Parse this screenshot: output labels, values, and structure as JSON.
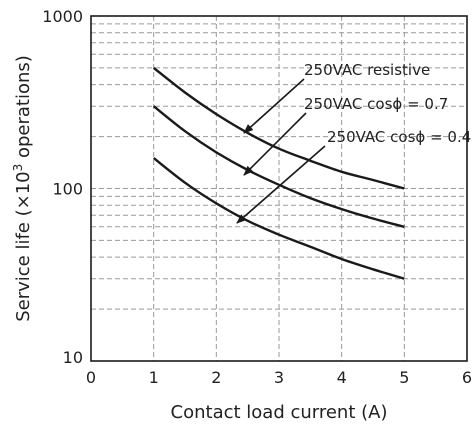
{
  "chart_data": {
    "type": "line",
    "title": "",
    "xlabel": "Contact load current (A)",
    "ylabel": "Service life (×10³ operations)",
    "ylabel_parts": {
      "prefix": "Service life (×10",
      "sup": "3",
      "suffix": " operations)"
    },
    "xlim": [
      0,
      6
    ],
    "ylim": [
      10,
      1000
    ],
    "yscale": "log",
    "grid": true,
    "grid_style": "dashed",
    "x_ticks": [
      "0",
      "1",
      "2",
      "3",
      "4",
      "5",
      "6"
    ],
    "y_ticks": [
      "10",
      "100",
      "1000"
    ],
    "series": [
      {
        "label_prefix": "250VAC ",
        "label_main": "resistive",
        "x": [
          1,
          1.5,
          2,
          2.5,
          3,
          3.5,
          4,
          4.5,
          5
        ],
        "y": [
          500,
          360,
          270,
          210,
          170,
          145,
          125,
          112,
          100
        ]
      },
      {
        "label_prefix": "250VAC ",
        "label_main": "cosϕ = 0.7",
        "x": [
          1,
          1.5,
          2,
          2.5,
          3,
          3.5,
          4,
          4.5,
          5
        ],
        "y": [
          300,
          215,
          162,
          128,
          105,
          88,
          76,
          67,
          60
        ]
      },
      {
        "label_prefix": "250VAC ",
        "label_main": "cosϕ = 0.4",
        "x": [
          1,
          1.5,
          2,
          2.5,
          3,
          3.5,
          4,
          4.5,
          5
        ],
        "y": [
          150,
          108,
          82,
          65,
          54,
          46,
          39,
          34,
          30
        ]
      }
    ],
    "line_color": "#1a1a1a",
    "grid_color": "#9a9a9a"
  }
}
